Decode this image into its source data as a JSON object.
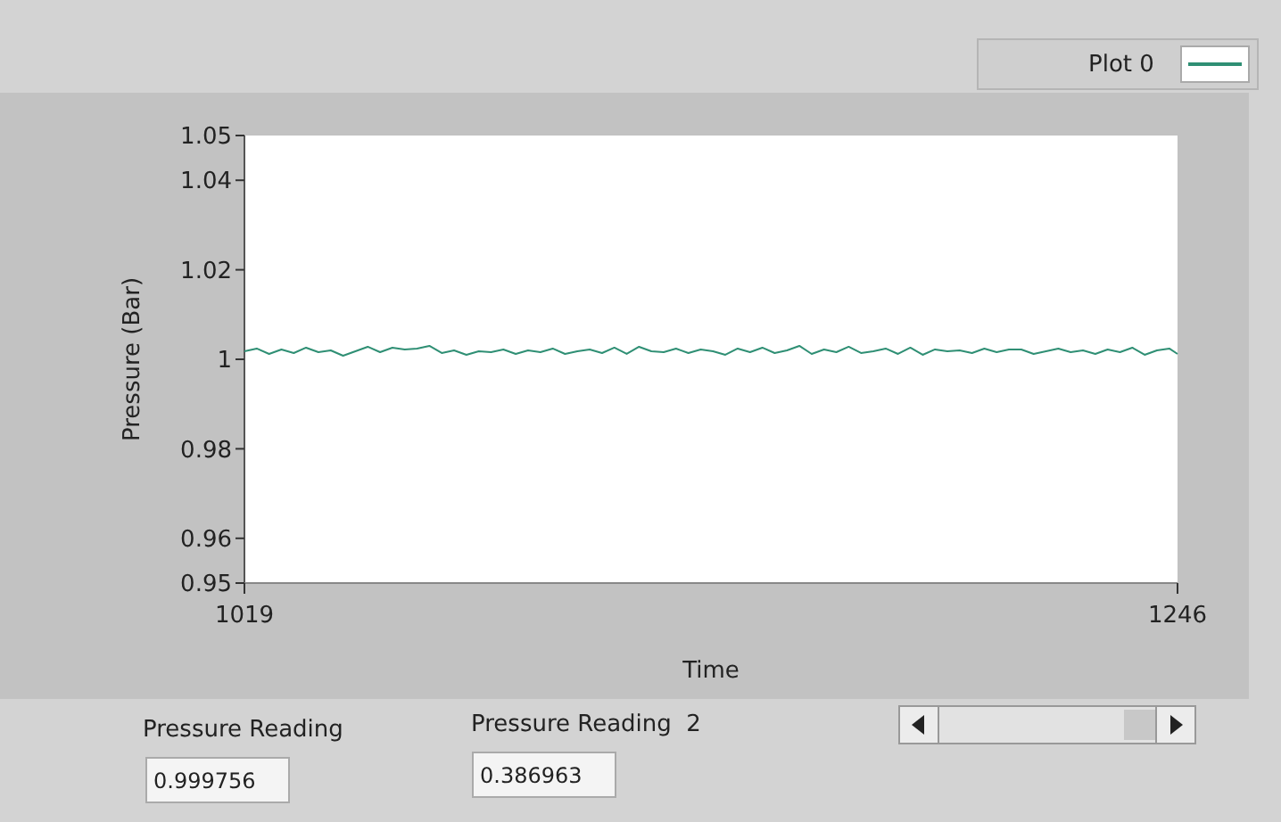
{
  "chart_data": {
    "type": "line",
    "xlabel": "Time",
    "ylabel": "Pressure (Bar)",
    "xlim": [
      1019,
      1246
    ],
    "xticks": [
      1019,
      1246
    ],
    "ylim": [
      0.95,
      1.05
    ],
    "yticks": [
      0.95,
      0.96,
      0.98,
      1,
      1.02,
      1.04,
      1.05
    ],
    "grid": false,
    "legend": "top right",
    "series": [
      {
        "name": "Plot 0",
        "color": "#2f8f74",
        "x": [
          1019,
          1022,
          1025,
          1028,
          1031,
          1034,
          1037,
          1040,
          1043,
          1046,
          1049,
          1052,
          1055,
          1058,
          1061,
          1064,
          1067,
          1070,
          1073,
          1076,
          1079,
          1082,
          1085,
          1088,
          1091,
          1094,
          1097,
          1100,
          1103,
          1106,
          1109,
          1112,
          1115,
          1118,
          1121,
          1124,
          1127,
          1130,
          1133,
          1136,
          1139,
          1142,
          1145,
          1148,
          1151,
          1154,
          1157,
          1160,
          1163,
          1166,
          1169,
          1172,
          1175,
          1178,
          1181,
          1184,
          1187,
          1190,
          1193,
          1196,
          1199,
          1202,
          1205,
          1208,
          1211,
          1214,
          1217,
          1220,
          1223,
          1226,
          1229,
          1232,
          1235,
          1238,
          1241,
          1244,
          1246
        ],
        "values": [
          1.0018,
          1.0024,
          1.0012,
          1.0022,
          1.0014,
          1.0026,
          1.0016,
          1.002,
          1.0008,
          1.0018,
          1.0028,
          1.0016,
          1.0026,
          1.0022,
          1.0024,
          1.003,
          1.0014,
          1.002,
          1.001,
          1.0018,
          1.0016,
          1.0022,
          1.0012,
          1.002,
          1.0016,
          1.0024,
          1.0012,
          1.0018,
          1.0022,
          1.0014,
          1.0026,
          1.0012,
          1.0028,
          1.0018,
          1.0016,
          1.0024,
          1.0014,
          1.0022,
          1.0018,
          1.001,
          1.0024,
          1.0016,
          1.0026,
          1.0014,
          1.002,
          1.003,
          1.0012,
          1.0022,
          1.0016,
          1.0028,
          1.0014,
          1.0018,
          1.0024,
          1.0012,
          1.0026,
          1.001,
          1.0022,
          1.0018,
          1.002,
          1.0014,
          1.0024,
          1.0016,
          1.0022,
          1.0022,
          1.0012,
          1.0018,
          1.0024,
          1.0016,
          1.002,
          1.0012,
          1.0022,
          1.0016,
          1.0026,
          1.001,
          1.002,
          1.0024,
          1.0012
        ]
      }
    ],
    "annotations": [
      "Pressure Reading",
      "0.999756",
      "Pressure Reading  2",
      "0.386963"
    ]
  }
}
